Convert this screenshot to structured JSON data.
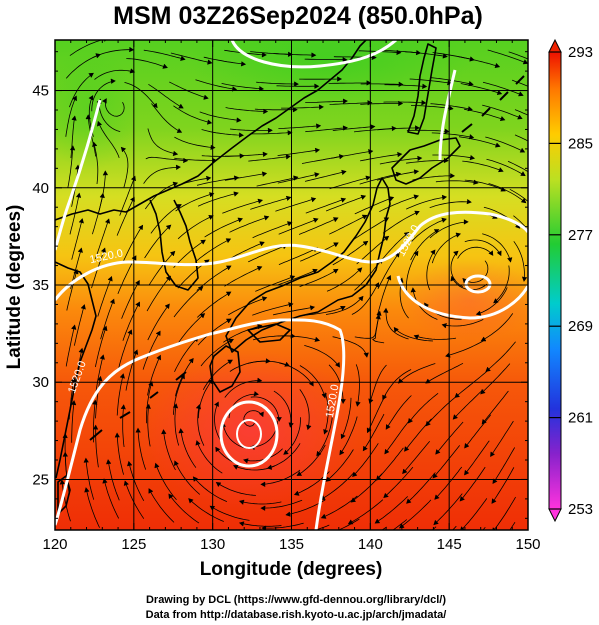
{
  "title": "MSM 03Z26Sep2024 (850.0hPa)",
  "xlabel": "Longitude (degrees)",
  "ylabel": "Latitude  (degrees)",
  "credits": [
    "Drawing by DCL (https://www.gfd-dennou.org/library/dcl/)",
    "Data from http://database.rish.kyoto-u.ac.jp/arch/jmadata/"
  ],
  "map": {
    "lon_range": [
      120,
      150
    ],
    "lat_range": [
      22.4,
      47.6
    ],
    "lon_ticks": [
      {
        "value": 120,
        "label": "120"
      },
      {
        "value": 125,
        "label": "125"
      },
      {
        "value": 130,
        "label": "130"
      },
      {
        "value": 135,
        "label": "135"
      },
      {
        "value": 140,
        "label": "140"
      },
      {
        "value": 145,
        "label": "145"
      },
      {
        "value": 150,
        "label": "150"
      }
    ],
    "lat_ticks": [
      {
        "value": 25,
        "label": "25"
      },
      {
        "value": 30,
        "label": "30"
      },
      {
        "value": 35,
        "label": "35"
      },
      {
        "value": 40,
        "label": "40"
      },
      {
        "value": 45,
        "label": "45"
      }
    ],
    "gridlines": true,
    "contour_level": "1520.0",
    "contour_labels": [
      {
        "text": "1520.0",
        "lon": 123.3,
        "lat": 36.3,
        "angle": -12
      },
      {
        "text": "1520.0",
        "lon": 142.6,
        "lat": 37.2,
        "angle": -62
      },
      {
        "text": "1520.0",
        "lon": 121.6,
        "lat": 30.2,
        "angle": -70
      },
      {
        "text": "1520.0",
        "lon": 137.8,
        "lat": 29.0,
        "angle": -80
      }
    ],
    "vortices": [
      {
        "lon": 146.8,
        "lat": 36.0
      },
      {
        "lon": 132.4,
        "lat": 28.0
      },
      {
        "lon": 123.7,
        "lat": 44.6
      }
    ]
  },
  "colorbar": {
    "min": 253,
    "max": 293,
    "tick_labels": [
      {
        "value": 293,
        "label": "293"
      },
      {
        "value": 285,
        "label": "285"
      },
      {
        "value": 277,
        "label": "277"
      },
      {
        "value": 269,
        "label": "269"
      },
      {
        "value": 261,
        "label": "261"
      },
      {
        "value": 253,
        "label": "253"
      }
    ],
    "colors": [
      "#ff33dd",
      "#4422cc",
      "#1155ff",
      "#00cccc",
      "#22cc33",
      "#ddee22",
      "#ff9900",
      "#ee2200"
    ]
  }
}
